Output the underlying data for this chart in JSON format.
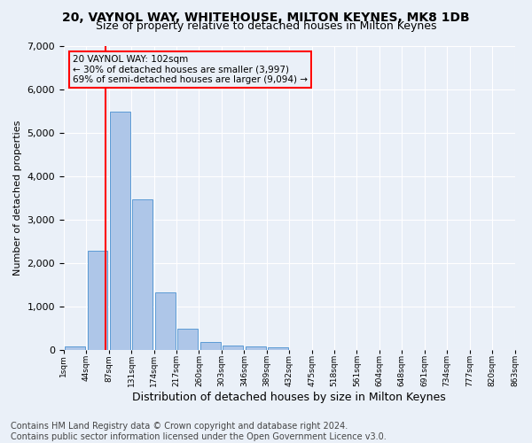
{
  "title1": "20, VAYNOL WAY, WHITEHOUSE, MILTON KEYNES, MK8 1DB",
  "title2": "Size of property relative to detached houses in Milton Keynes",
  "xlabel": "Distribution of detached houses by size in Milton Keynes",
  "ylabel": "Number of detached properties",
  "footer1": "Contains HM Land Registry data © Crown copyright and database right 2024.",
  "footer2": "Contains public sector information licensed under the Open Government Licence v3.0.",
  "annotation_line1": "20 VAYNOL WAY: 102sqm",
  "annotation_line2": "← 30% of detached houses are smaller (3,997)",
  "annotation_line3": "69% of semi-detached houses are larger (9,094) →",
  "bar_heights": [
    80,
    2280,
    5480,
    3450,
    1320,
    470,
    165,
    100,
    65,
    45,
    0,
    0,
    0,
    0,
    0,
    0,
    0,
    0,
    0,
    0
  ],
  "bar_color": "#aec6e8",
  "bar_edge_color": "#5b9bd5",
  "tick_labels": [
    "1sqm",
    "44sqm",
    "87sqm",
    "131sqm",
    "174sqm",
    "217sqm",
    "260sqm",
    "303sqm",
    "346sqm",
    "389sqm",
    "432sqm",
    "475sqm",
    "518sqm",
    "561sqm",
    "604sqm",
    "648sqm",
    "691sqm",
    "734sqm",
    "777sqm",
    "820sqm",
    "863sqm"
  ],
  "ylim": [
    0,
    7000
  ],
  "vline_x": 1.35,
  "vline_color": "red",
  "background_color": "#eaf0f8",
  "annotation_box_color": "red",
  "grid_color": "#ffffff",
  "title1_fontsize": 10,
  "title2_fontsize": 9,
  "xlabel_fontsize": 9,
  "ylabel_fontsize": 8,
  "footer_fontsize": 7
}
